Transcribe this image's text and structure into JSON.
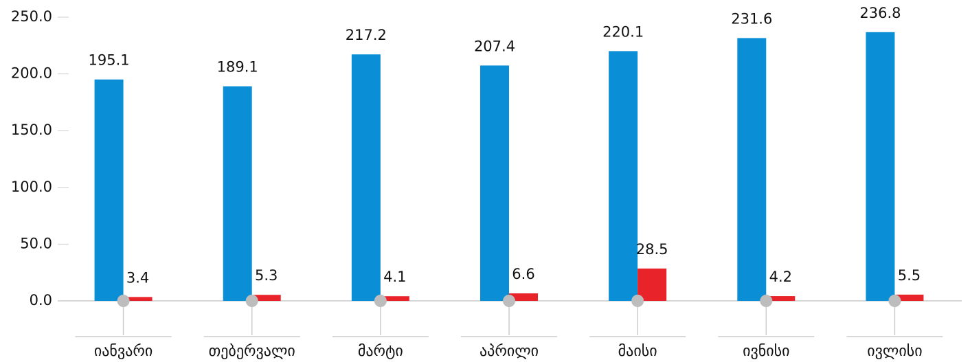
{
  "chart_data": {
    "type": "bar",
    "categories": [
      "იანვარი",
      "თებერვალი",
      "მარტი",
      "აპრილი",
      "მაისი",
      "ივნისი",
      "ივლისი"
    ],
    "series": [
      {
        "color": "#0a8fd6",
        "values": [
          195.1,
          189.1,
          217.2,
          207.4,
          220.1,
          231.6,
          236.8
        ]
      },
      {
        "color": "#e8232a",
        "values": [
          3.4,
          5.3,
          4.1,
          6.6,
          28.5,
          4.2,
          5.5
        ]
      }
    ],
    "ylim": [
      0,
      250
    ],
    "yticks": [
      {
        "value": 0,
        "label": "0.0"
      },
      {
        "value": 50,
        "label": "50.0"
      },
      {
        "value": 100,
        "label": "100.0"
      },
      {
        "value": 150,
        "label": "150.0"
      },
      {
        "value": 200,
        "label": "200.0"
      },
      {
        "value": 250,
        "label": "250.0"
      }
    ],
    "grid": false
  }
}
